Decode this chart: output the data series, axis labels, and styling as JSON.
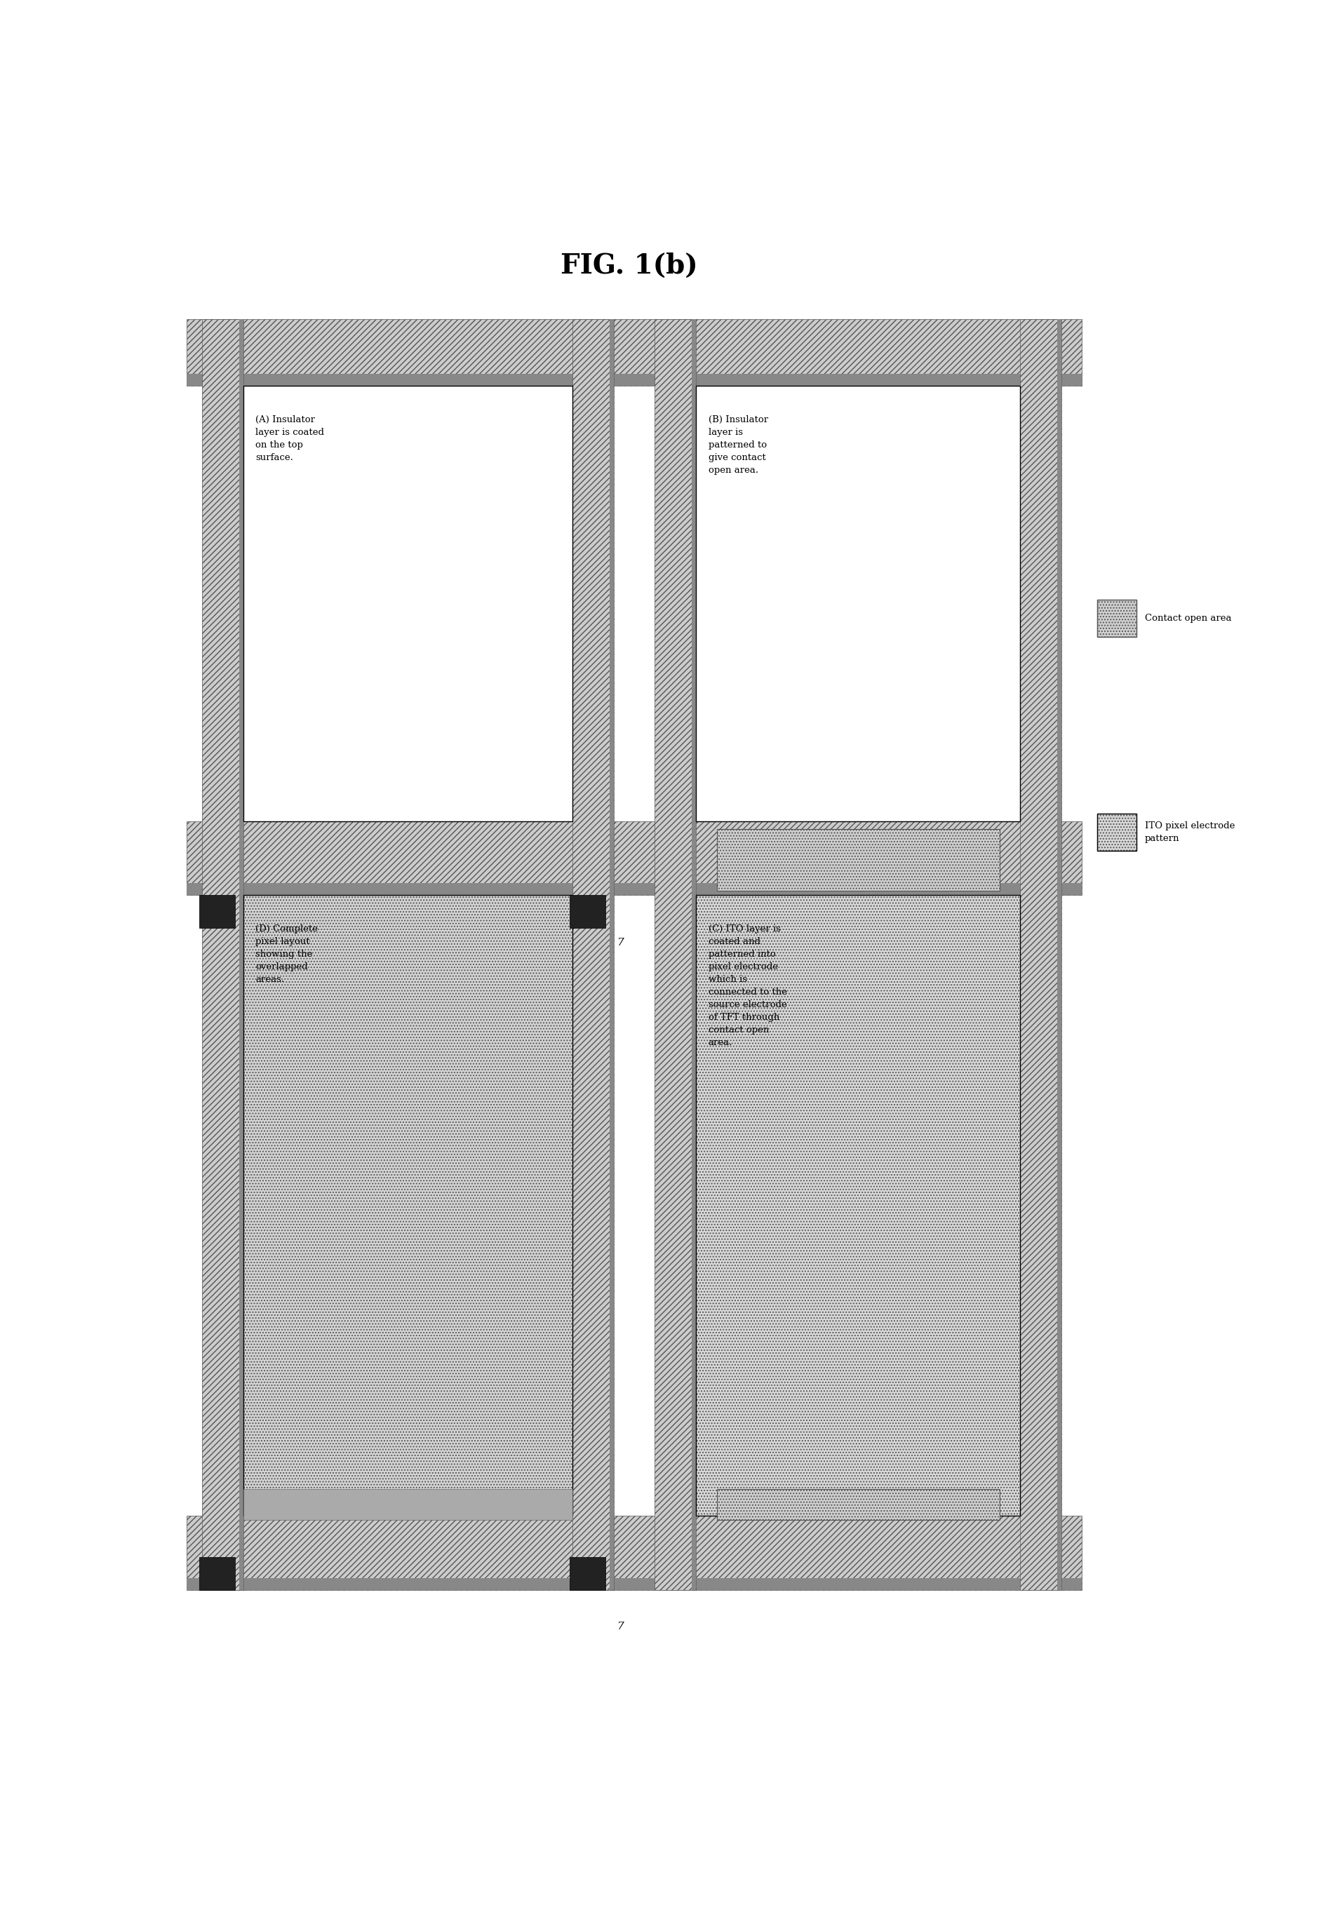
{
  "title": "FIG. 1(b)",
  "title_fontsize": 28,
  "bg_color": "#ffffff",
  "fig_width": 18.93,
  "fig_height": 27.36,
  "legend_contact_label": "Contact open area",
  "legend_ito_label": "ITO pixel electrode\npattern",
  "panel_A_text": "(A) Insulator\nlayer is coated\non the top\nsurface.",
  "panel_B_text": "(B) Insulator\nlayer is\npatterned to\ngive contact\nopen area.",
  "panel_C_text": "(C) ITO layer is\ncoated and\npatterned into\npixel electrode\nwhich is\nconnected to the\nsource electrode\nof TFT through\ncontact open\narea.",
  "panel_D_text": "(D) Complete\npixel layout\nshowing the\noverlapped\nareas.",
  "dark_gray": "#555555",
  "light_gray": "#cccccc",
  "med_gray": "#888888",
  "dot_fill": "#d0d0d0",
  "black": "#000000",
  "white": "#ffffff"
}
